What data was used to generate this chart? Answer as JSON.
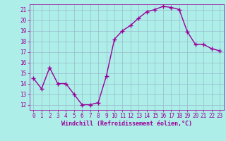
{
  "x": [
    0,
    1,
    2,
    3,
    4,
    5,
    6,
    7,
    8,
    9,
    10,
    11,
    12,
    13,
    14,
    15,
    16,
    17,
    18,
    19,
    20,
    21,
    22,
    23
  ],
  "y": [
    14.5,
    13.5,
    15.5,
    14.0,
    14.0,
    13.0,
    12.0,
    12.0,
    12.2,
    14.7,
    18.2,
    19.0,
    19.5,
    20.2,
    20.8,
    21.0,
    21.3,
    21.2,
    21.0,
    18.9,
    17.7,
    17.7,
    17.3,
    17.1
  ],
  "line_color": "#990099",
  "bg_color": "#aeeee8",
  "grid_color": "#99bbcc",
  "xlabel": "Windchill (Refroidissement éolien,°C)",
  "ylim": [
    11.5,
    21.5
  ],
  "xlim": [
    -0.5,
    23.5
  ],
  "yticks": [
    12,
    13,
    14,
    15,
    16,
    17,
    18,
    19,
    20,
    21
  ],
  "xticks": [
    0,
    1,
    2,
    3,
    4,
    5,
    6,
    7,
    8,
    9,
    10,
    11,
    12,
    13,
    14,
    15,
    16,
    17,
    18,
    19,
    20,
    21,
    22,
    23
  ],
  "marker": "+",
  "markersize": 4,
  "linewidth": 1.0,
  "tick_fontsize": 5.5,
  "xlabel_fontsize": 6.0
}
